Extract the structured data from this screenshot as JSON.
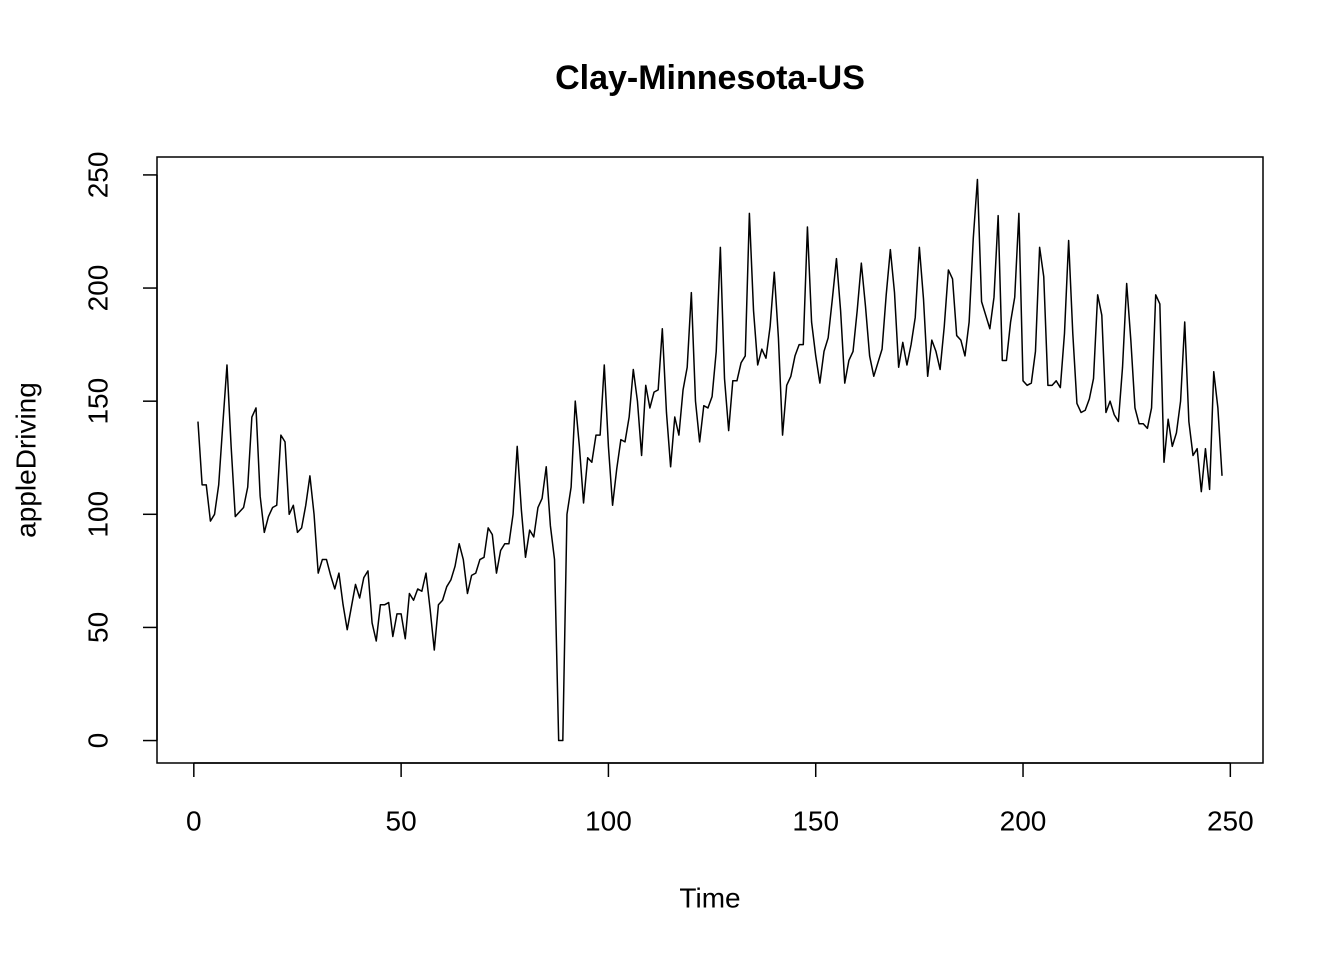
{
  "chart_data": {
    "type": "line",
    "title": "Clay-Minnesota-US",
    "x_label": "Time",
    "y_label": "appleDriving",
    "color": "#000000",
    "x": [
      1,
      2,
      3,
      4,
      5,
      6,
      7,
      8,
      9,
      10,
      11,
      12,
      13,
      14,
      15,
      16,
      17,
      18,
      19,
      20,
      21,
      22,
      23,
      24,
      25,
      26,
      27,
      28,
      29,
      30,
      31,
      32,
      33,
      34,
      35,
      36,
      37,
      38,
      39,
      40,
      41,
      42,
      43,
      44,
      45,
      46,
      47,
      48,
      49,
      50,
      51,
      52,
      53,
      54,
      55,
      56,
      57,
      58,
      59,
      60,
      61,
      62,
      63,
      64,
      65,
      66,
      67,
      68,
      69,
      70,
      71,
      72,
      73,
      74,
      75,
      76,
      77,
      78,
      79,
      80,
      81,
      82,
      83,
      84,
      85,
      86,
      87,
      88,
      89,
      90,
      91,
      92,
      93,
      94,
      95,
      96,
      97,
      98,
      99,
      100,
      101,
      102,
      103,
      104,
      105,
      106,
      107,
      108,
      109,
      110,
      111,
      112,
      113,
      114,
      115,
      116,
      117,
      118,
      119,
      120,
      121,
      122,
      123,
      124,
      125,
      126,
      127,
      128,
      129,
      130,
      131,
      132,
      133,
      134,
      135,
      136,
      137,
      138,
      139,
      140,
      141,
      142,
      143,
      144,
      145,
      146,
      147,
      148,
      149,
      150,
      151,
      152,
      153,
      154,
      155,
      156,
      157,
      158,
      159,
      160,
      161,
      162,
      163,
      164,
      165,
      166,
      167,
      168,
      169,
      170,
      171,
      172,
      173,
      174,
      175,
      176,
      177,
      178,
      179,
      180,
      181,
      182,
      183,
      184,
      185,
      186,
      187,
      188,
      189,
      190,
      191,
      192,
      193,
      194,
      195,
      196,
      197,
      198,
      199,
      200,
      201,
      202,
      203,
      204,
      205,
      206,
      207,
      208,
      209,
      210,
      211,
      212,
      213,
      214,
      215,
      216,
      217,
      218,
      219,
      220,
      221,
      222,
      223,
      224,
      225,
      226,
      227,
      228,
      229,
      230,
      231,
      232,
      233,
      234,
      235,
      236,
      237,
      238,
      239,
      240,
      241,
      242,
      243,
      244,
      245,
      246,
      247,
      248
    ],
    "values": [
      141,
      113,
      113,
      97,
      100,
      113,
      140,
      166,
      130,
      99,
      101,
      103,
      112,
      143,
      147,
      108,
      92,
      99,
      103,
      104,
      135,
      132,
      100,
      104,
      92,
      94,
      104,
      117,
      100,
      74,
      80,
      80,
      73,
      67,
      74,
      60,
      49,
      59,
      69,
      63,
      72,
      75,
      52,
      44,
      60,
      60,
      61,
      46,
      56,
      56,
      45,
      65,
      62,
      67,
      66,
      74,
      58,
      40,
      60,
      62,
      68,
      71,
      77,
      87,
      80,
      65,
      73,
      74,
      80,
      81,
      94,
      91,
      74,
      84,
      87,
      87,
      100,
      130,
      102,
      81,
      93,
      90,
      103,
      107,
      121,
      95,
      80,
      0,
      0,
      100,
      112,
      150,
      130,
      105,
      125,
      123,
      135,
      135,
      166,
      130,
      104,
      120,
      133,
      132,
      143,
      164,
      150,
      126,
      157,
      147,
      154,
      155,
      182,
      145,
      121,
      143,
      135,
      155,
      165,
      198,
      150,
      132,
      148,
      147,
      152,
      172,
      218,
      160,
      137,
      159,
      159,
      167,
      170,
      233,
      190,
      166,
      173,
      169,
      183,
      207,
      178,
      135,
      157,
      161,
      170,
      175,
      175,
      227,
      185,
      170,
      158,
      172,
      178,
      195,
      213,
      190,
      158,
      168,
      172,
      190,
      211,
      192,
      170,
      161,
      167,
      173,
      197,
      217,
      198,
      165,
      176,
      166,
      175,
      187,
      218,
      195,
      161,
      177,
      172,
      164,
      183,
      208,
      204,
      179,
      177,
      170,
      185,
      222,
      248,
      194,
      188,
      182,
      196,
      232,
      168,
      168,
      185,
      196,
      233,
      159,
      157,
      158,
      172,
      218,
      205,
      157,
      157,
      159,
      156,
      180,
      221,
      180,
      149,
      145,
      146,
      151,
      160,
      197,
      188,
      145,
      150,
      144,
      141,
      165,
      202,
      177,
      147,
      140,
      140,
      138,
      147,
      197,
      193,
      123,
      142,
      130,
      136,
      150,
      185,
      141,
      126,
      129,
      110,
      129,
      111,
      163,
      147,
      117
    ],
    "xlim": [
      -8.88,
      257.88
    ],
    "ylim": [
      -9.92,
      257.92
    ],
    "xticks": [
      0,
      50,
      100,
      150,
      200,
      250
    ],
    "yticks": [
      0,
      50,
      100,
      150,
      200,
      250
    ]
  }
}
